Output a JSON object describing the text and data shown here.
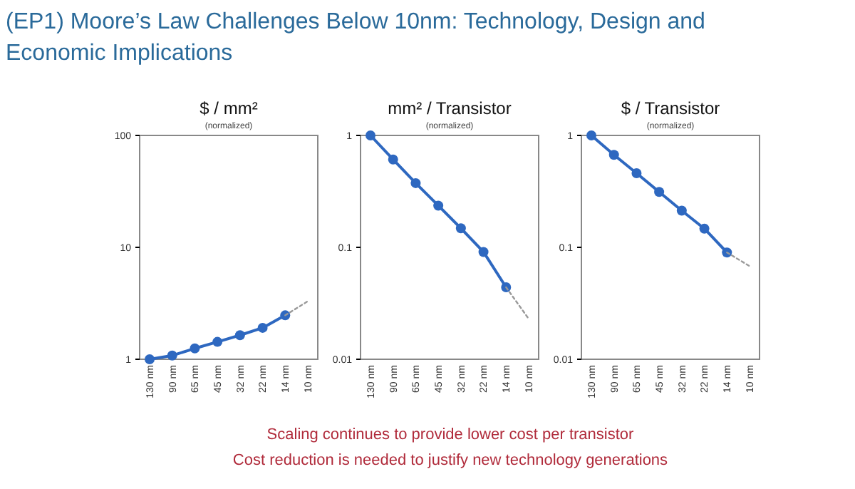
{
  "chart_data": [
    {
      "type": "line",
      "title": "$ / mm²",
      "subtitle": "(normalized)",
      "log": true,
      "ylim": [
        1,
        100
      ],
      "yticks": [
        1,
        10,
        100
      ],
      "categories": [
        "130 nm",
        "90 nm",
        "65 nm",
        "45 nm",
        "32 nm",
        "22 nm",
        "14 nm",
        "10 nm"
      ],
      "annotations": [
        "(EP1) Moore’s Law Challenges Below 10nm: Technology, Design and Economic Implications",
        "Scaling continues to provide lower cost per transistor",
        "Cost reduction is needed to justify new technology generations"
      ],
      "series": [
        {
          "color": "#2e68c0",
          "marker": "circle",
          "line_style": "solid",
          "values": [
            1,
            1.08,
            1.25,
            1.43,
            1.64,
            1.91,
            2.47,
            null
          ]
        },
        {
          "color": "#9a9a9a",
          "marker": "none",
          "line_style": "dotted",
          "values": [
            null,
            null,
            null,
            null,
            null,
            null,
            2.47,
            3.3
          ]
        }
      ]
    },
    {
      "type": "line",
      "title": "mm² / Transistor",
      "subtitle": "(normalized)",
      "log": true,
      "ylim": [
        0.01,
        1
      ],
      "yticks": [
        0.01,
        0.1,
        1
      ],
      "categories": [
        "130 nm",
        "90 nm",
        "65 nm",
        "45 nm",
        "32 nm",
        "22 nm",
        "14 nm",
        "10 nm"
      ],
      "series": [
        {
          "color": "#2e68c0",
          "marker": "circle",
          "line_style": "solid",
          "values": [
            1,
            0.61,
            0.375,
            0.236,
            0.148,
            0.091,
            0.044,
            null
          ]
        },
        {
          "color": "#9a9a9a",
          "marker": "none",
          "line_style": "dotted",
          "values": [
            null,
            null,
            null,
            null,
            null,
            null,
            0.044,
            0.023
          ]
        }
      ]
    },
    {
      "type": "line",
      "title": "$ / Transistor",
      "subtitle": "(normalized)",
      "log": true,
      "ylim": [
        0.01,
        1
      ],
      "yticks": [
        0.01,
        0.1,
        1
      ],
      "categories": [
        "130 nm",
        "90 nm",
        "65 nm",
        "45 nm",
        "32 nm",
        "22 nm",
        "14 nm",
        "10 nm"
      ],
      "series": [
        {
          "color": "#2e68c0",
          "marker": "circle",
          "line_style": "solid",
          "values": [
            1,
            0.67,
            0.46,
            0.313,
            0.213,
            0.147,
            0.09,
            null
          ]
        },
        {
          "color": "#9a9a9a",
          "marker": "none",
          "line_style": "dotted",
          "values": [
            null,
            null,
            null,
            null,
            null,
            null,
            0.09,
            0.068
          ]
        }
      ]
    }
  ]
}
